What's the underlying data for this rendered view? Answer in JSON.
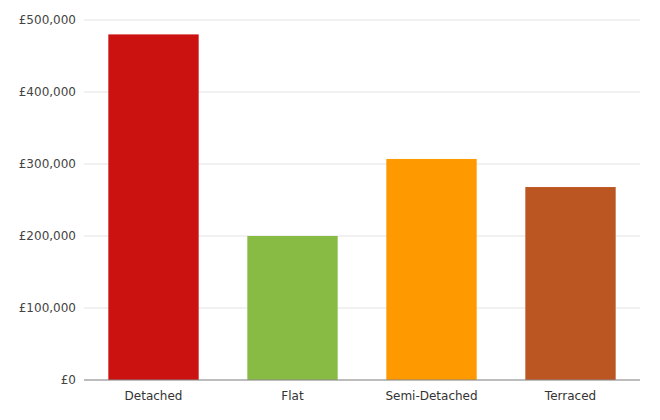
{
  "chart_data": {
    "type": "bar",
    "categories": [
      "Detached",
      "Flat",
      "Semi-Detached",
      "Terraced"
    ],
    "values": [
      480000,
      200000,
      307000,
      268000
    ],
    "colors": [
      "#cc1111",
      "#88bb44",
      "#ff9900",
      "#bb5522"
    ],
    "ylim": [
      0,
      500000
    ],
    "yticks": [
      {
        "value": 0,
        "label": "£0"
      },
      {
        "value": 100000,
        "label": "£100,000"
      },
      {
        "value": 200000,
        "label": "£200,000"
      },
      {
        "value": 300000,
        "label": "£300,000"
      },
      {
        "value": 400000,
        "label": "£400,000"
      },
      {
        "value": 500000,
        "label": "£500,000"
      }
    ],
    "grid": true
  }
}
